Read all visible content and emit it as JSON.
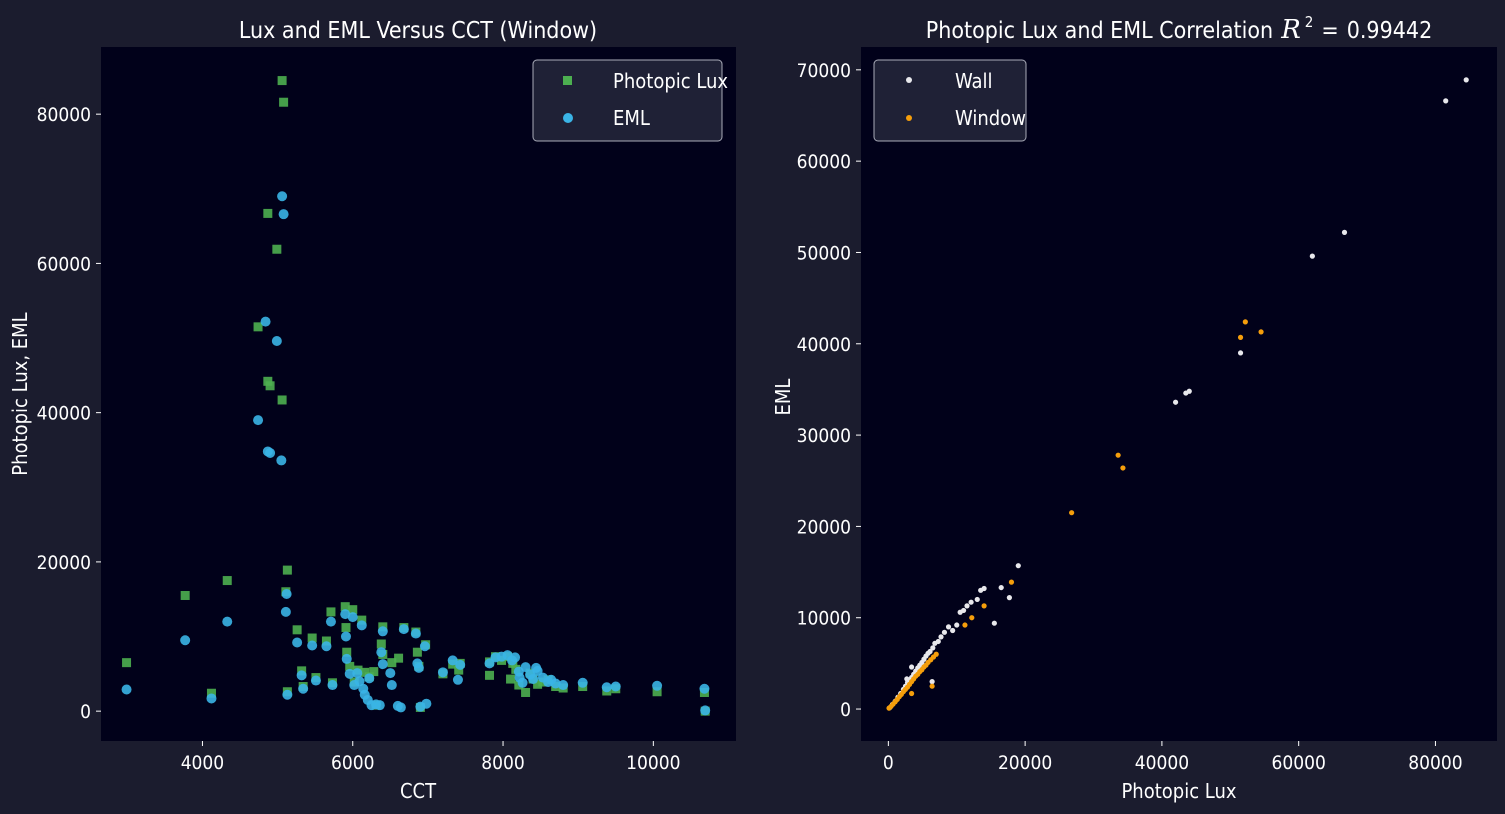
{
  "colors": {
    "figure_bg": "#1b1c2e",
    "plot_bg": "#01011a",
    "text": "#ffffff",
    "lux": "#4caf50",
    "eml": "#3ab4e6",
    "wall": "#e8e8ec",
    "window": "#f59e0b"
  },
  "chart_data": [
    {
      "type": "scatter",
      "title": "Lux and EML Versus CCT (Window)",
      "xlabel": "CCT",
      "ylabel": "Photopic Lux, EML",
      "xlim": [
        2650,
        11100
      ],
      "ylim": [
        -4000,
        89000
      ],
      "xticks": [
        4000,
        6000,
        8000,
        10000
      ],
      "yticks": [
        0,
        20000,
        40000,
        60000,
        80000
      ],
      "grid": false,
      "legend": "top-right",
      "series": [
        {
          "name": "Photopic Lux",
          "marker": "square",
          "color": "#4caf50",
          "points": [
            [
              2990,
              6500
            ],
            [
              3770,
              15500
            ],
            [
              4120,
              2400
            ],
            [
              4330,
              17500
            ],
            [
              4740,
              51500
            ],
            [
              4870,
              44200
            ],
            [
              4870,
              66700
            ],
            [
              4900,
              43600
            ],
            [
              4990,
              61900
            ],
            [
              5060,
              84500
            ],
            [
              5060,
              41700
            ],
            [
              5080,
              81600
            ],
            [
              5110,
              16000
            ],
            [
              5130,
              18900
            ],
            [
              5130,
              2600
            ],
            [
              5260,
              10900
            ],
            [
              5320,
              5400
            ],
            [
              5340,
              3300
            ],
            [
              5460,
              9800
            ],
            [
              5510,
              4500
            ],
            [
              5650,
              9400
            ],
            [
              5710,
              13300
            ],
            [
              5730,
              3800
            ],
            [
              5900,
              14000
            ],
            [
              5910,
              11200
            ],
            [
              5920,
              7900
            ],
            [
              5960,
              6000
            ],
            [
              6000,
              13600
            ],
            [
              6020,
              3900
            ],
            [
              6070,
              5500
            ],
            [
              6120,
              12200
            ],
            [
              6160,
              5200
            ],
            [
              6220,
              4600
            ],
            [
              6280,
              5300
            ],
            [
              6310,
              800
            ],
            [
              6380,
              9000
            ],
            [
              6400,
              7600
            ],
            [
              6400,
              11300
            ],
            [
              6520,
              6500
            ],
            [
              6610,
              7100
            ],
            [
              6680,
              11200
            ],
            [
              6840,
              10600
            ],
            [
              6860,
              7900
            ],
            [
              6880,
              6000
            ],
            [
              6900,
              500
            ],
            [
              6970,
              8900
            ],
            [
              7200,
              5000
            ],
            [
              7330,
              6300
            ],
            [
              7410,
              5500
            ],
            [
              7430,
              6400
            ],
            [
              7820,
              4800
            ],
            [
              7820,
              6600
            ],
            [
              7900,
              7300
            ],
            [
              7980,
              6800
            ],
            [
              8060,
              7300
            ],
            [
              8100,
              4300
            ],
            [
              8130,
              6400
            ],
            [
              8170,
              5600
            ],
            [
              8210,
              3500
            ],
            [
              8300,
              2500
            ],
            [
              8360,
              5100
            ],
            [
              8400,
              4300
            ],
            [
              8460,
              3600
            ],
            [
              8530,
              3900
            ],
            [
              8600,
              4200
            ],
            [
              8700,
              3300
            ],
            [
              8800,
              3100
            ],
            [
              9060,
              3300
            ],
            [
              9380,
              2700
            ],
            [
              9500,
              3000
            ],
            [
              10050,
              2600
            ],
            [
              10680,
              2500
            ],
            [
              10690,
              0
            ]
          ]
        },
        {
          "name": "EML",
          "marker": "circle",
          "color": "#3ab4e6",
          "points": [
            [
              2990,
              2900
            ],
            [
              3770,
              9500
            ],
            [
              4120,
              1700
            ],
            [
              4330,
              12000
            ],
            [
              4740,
              39000
            ],
            [
              4840,
              52200
            ],
            [
              4870,
              34800
            ],
            [
              4900,
              34600
            ],
            [
              4990,
              49600
            ],
            [
              5050,
              33600
            ],
            [
              5060,
              69000
            ],
            [
              5080,
              66600
            ],
            [
              5110,
              13300
            ],
            [
              5120,
              15700
            ],
            [
              5130,
              2200
            ],
            [
              5260,
              9200
            ],
            [
              5320,
              4800
            ],
            [
              5340,
              3000
            ],
            [
              5460,
              8800
            ],
            [
              5510,
              4100
            ],
            [
              5650,
              8700
            ],
            [
              5710,
              12000
            ],
            [
              5730,
              3500
            ],
            [
              5900,
              13000
            ],
            [
              5910,
              10000
            ],
            [
              5920,
              7000
            ],
            [
              5960,
              5000
            ],
            [
              6000,
              12600
            ],
            [
              6020,
              3500
            ],
            [
              6060,
              5100
            ],
            [
              6090,
              4000
            ],
            [
              6120,
              11500
            ],
            [
              6140,
              3000
            ],
            [
              6160,
              2200
            ],
            [
              6200,
              1500
            ],
            [
              6220,
              4400
            ],
            [
              6250,
              800
            ],
            [
              6310,
              900
            ],
            [
              6360,
              800
            ],
            [
              6380,
              7900
            ],
            [
              6400,
              6300
            ],
            [
              6400,
              10700
            ],
            [
              6500,
              5100
            ],
            [
              6520,
              3500
            ],
            [
              6600,
              700
            ],
            [
              6640,
              500
            ],
            [
              6680,
              11000
            ],
            [
              6840,
              10400
            ],
            [
              6860,
              6400
            ],
            [
              6880,
              5800
            ],
            [
              6900,
              600
            ],
            [
              6960,
              8700
            ],
            [
              6980,
              1000
            ],
            [
              7200,
              5200
            ],
            [
              7330,
              6800
            ],
            [
              7400,
              4200
            ],
            [
              7430,
              6200
            ],
            [
              7820,
              6400
            ],
            [
              7900,
              7200
            ],
            [
              7980,
              7300
            ],
            [
              8060,
              7500
            ],
            [
              8120,
              6800
            ],
            [
              8160,
              7200
            ],
            [
              8210,
              5300
            ],
            [
              8220,
              4500
            ],
            [
              8260,
              3800
            ],
            [
              8300,
              5900
            ],
            [
              8360,
              4900
            ],
            [
              8400,
              4300
            ],
            [
              8440,
              5800
            ],
            [
              8460,
              5400
            ],
            [
              8530,
              4500
            ],
            [
              8600,
              3900
            ],
            [
              8640,
              4200
            ],
            [
              8700,
              3700
            ],
            [
              8800,
              3500
            ],
            [
              9060,
              3800
            ],
            [
              9380,
              3200
            ],
            [
              9500,
              3300
            ],
            [
              10050,
              3400
            ],
            [
              10680,
              3000
            ],
            [
              10690,
              100
            ]
          ]
        }
      ]
    },
    {
      "type": "scatter",
      "title": "Photopic Lux and EML Correlation",
      "title_r2_value": "0.99442",
      "xlabel": "Photopic Lux",
      "ylabel": "EML",
      "xlim": [
        -4000,
        89000
      ],
      "ylim": [
        -3500,
        72500
      ],
      "xticks": [
        0,
        20000,
        40000,
        60000,
        80000
      ],
      "yticks": [
        0,
        10000,
        20000,
        30000,
        40000,
        50000,
        60000,
        70000
      ],
      "grid": false,
      "legend": "top-left",
      "series": [
        {
          "name": "Wall",
          "marker": "dot",
          "color": "#e8e8ec",
          "points": [
            [
              200,
              150
            ],
            [
              600,
              500
            ],
            [
              1000,
              850
            ],
            [
              1400,
              1300
            ],
            [
              1800,
              1700
            ],
            [
              2200,
              2150
            ],
            [
              2500,
              2500
            ],
            [
              2800,
              2900
            ],
            [
              3100,
              3200
            ],
            [
              3400,
              3450
            ],
            [
              3700,
              3800
            ],
            [
              4000,
              4150
            ],
            [
              4300,
              4500
            ],
            [
              4600,
              4800
            ],
            [
              4900,
              5100
            ],
            [
              5200,
              5450
            ],
            [
              5500,
              5800
            ],
            [
              5800,
              6100
            ],
            [
              6100,
              6300
            ],
            [
              6500,
              6700
            ],
            [
              6800,
              7200
            ],
            [
              7300,
              7400
            ],
            [
              7700,
              7900
            ],
            [
              8200,
              8400
            ],
            [
              8800,
              9000
            ],
            [
              9400,
              8600
            ],
            [
              10000,
              9200
            ],
            [
              10500,
              10600
            ],
            [
              11000,
              10800
            ],
            [
              11500,
              11300
            ],
            [
              12100,
              11700
            ],
            [
              13000,
              12000
            ],
            [
              13500,
              13000
            ],
            [
              14000,
              13200
            ],
            [
              15500,
              9400
            ],
            [
              16500,
              13300
            ],
            [
              17700,
              12200
            ],
            [
              19000,
              15700
            ],
            [
              6400,
              3000
            ],
            [
              2700,
              3300
            ],
            [
              3400,
              4600
            ],
            [
              42000,
              33600
            ],
            [
              43500,
              34600
            ],
            [
              44000,
              34800
            ],
            [
              51500,
              39000
            ],
            [
              62000,
              49600
            ],
            [
              66700,
              52200
            ],
            [
              81500,
              66600
            ],
            [
              84500,
              68900
            ]
          ]
        },
        {
          "name": "Window",
          "marker": "dot",
          "color": "#f59e0b",
          "points": [
            [
              100,
              100
            ],
            [
              400,
              300
            ],
            [
              700,
              550
            ],
            [
              1000,
              800
            ],
            [
              1300,
              1050
            ],
            [
              1600,
              1350
            ],
            [
              1900,
              1600
            ],
            [
              2200,
              1900
            ],
            [
              2500,
              2150
            ],
            [
              2800,
              2400
            ],
            [
              3100,
              2700
            ],
            [
              3400,
              3000
            ],
            [
              3700,
              3300
            ],
            [
              4000,
              3600
            ],
            [
              4300,
              3800
            ],
            [
              4600,
              4100
            ],
            [
              4900,
              4300
            ],
            [
              5200,
              4600
            ],
            [
              5500,
              4800
            ],
            [
              5800,
              5100
            ],
            [
              6200,
              5400
            ],
            [
              6600,
              5700
            ],
            [
              7000,
              6000
            ],
            [
              3400,
              1700
            ],
            [
              6400,
              2500
            ],
            [
              11200,
              9200
            ],
            [
              12200,
              10000
            ],
            [
              14000,
              11300
            ],
            [
              18000,
              13900
            ],
            [
              26800,
              21500
            ],
            [
              33600,
              27800
            ],
            [
              34300,
              26400
            ],
            [
              51500,
              40700
            ],
            [
              52200,
              42400
            ],
            [
              54500,
              41300
            ]
          ]
        }
      ]
    }
  ]
}
